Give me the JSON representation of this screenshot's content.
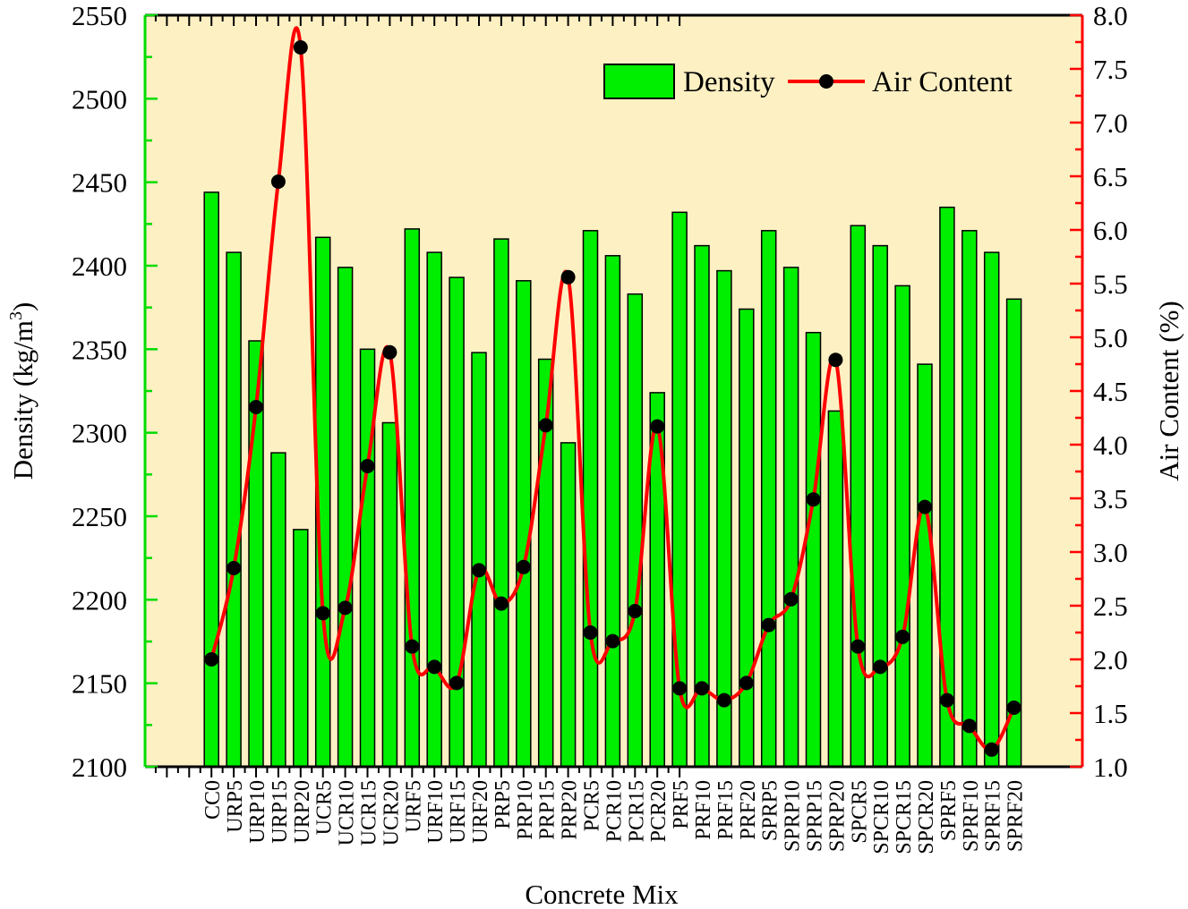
{
  "chart_data": {
    "type": "bar",
    "xlabel": "Concrete Mix",
    "ylabel": "Density (kg/m",
    "ylabel_sup": "3",
    "ylabel_close": ")",
    "y2label": "Air Content (%)",
    "ylim": [
      2100,
      2550
    ],
    "y2lim": [
      1.0,
      8.0
    ],
    "yticks": [
      "2100",
      "2150",
      "2200",
      "2250",
      "2300",
      "2350",
      "2400",
      "2450",
      "2500",
      "2550"
    ],
    "y2ticks": [
      "1.0",
      "1.5",
      "2.0",
      "2.5",
      "3.0",
      "3.5",
      "4.0",
      "4.5",
      "5.0",
      "5.5",
      "6.0",
      "6.5",
      "7.0",
      "7.5",
      "8.0"
    ],
    "legend_position": "top-right",
    "grid": false,
    "categories": [
      "CC0",
      "URP5",
      "URP10",
      "URP15",
      "URP20",
      "UCR5",
      "UCR10",
      "UCR15",
      "UCR20",
      "URF5",
      "URF10",
      "URF15",
      "URF20",
      "PRP5",
      "PRP10",
      "PRP15",
      "PRP20",
      "PCR5",
      "PCR10",
      "PCR15",
      "PCR20",
      "PRF5",
      "PRF10",
      "PRF15",
      "PRF20",
      "SPRP5",
      "SPRP10",
      "SPRP15",
      "SPRP20",
      "SPCR5",
      "SPCR10",
      "SPCR15",
      "SPCR20",
      "SPRF5",
      "SPRF10",
      "SPRF15",
      "SPRF20"
    ],
    "series": [
      {
        "name": "Density",
        "type": "bar",
        "axis": "left",
        "color": "#00ee00",
        "values": [
          2444,
          2408,
          2355,
          2288,
          2242,
          2417,
          2399,
          2350,
          2306,
          2422,
          2408,
          2393,
          2348,
          2416,
          2391,
          2344,
          2294,
          2421,
          2406,
          2383,
          2324,
          2432,
          2412,
          2397,
          2374,
          2421,
          2399,
          2360,
          2313,
          2424,
          2412,
          2388,
          2341,
          2435,
          2421,
          2408,
          2380
        ]
      },
      {
        "name": "Air Content",
        "type": "line",
        "axis": "right",
        "color": "#ff0000",
        "marker_color": "#000000",
        "values": [
          2.0,
          2.85,
          4.35,
          6.45,
          7.7,
          2.43,
          2.48,
          3.8,
          4.86,
          2.12,
          1.93,
          1.78,
          2.83,
          2.52,
          2.86,
          4.18,
          5.56,
          2.25,
          2.17,
          2.45,
          4.17,
          1.73,
          1.73,
          1.62,
          1.78,
          2.32,
          2.56,
          3.49,
          4.79,
          2.12,
          1.93,
          2.21,
          3.42,
          1.62,
          1.38,
          1.16,
          1.55
        ]
      }
    ]
  }
}
